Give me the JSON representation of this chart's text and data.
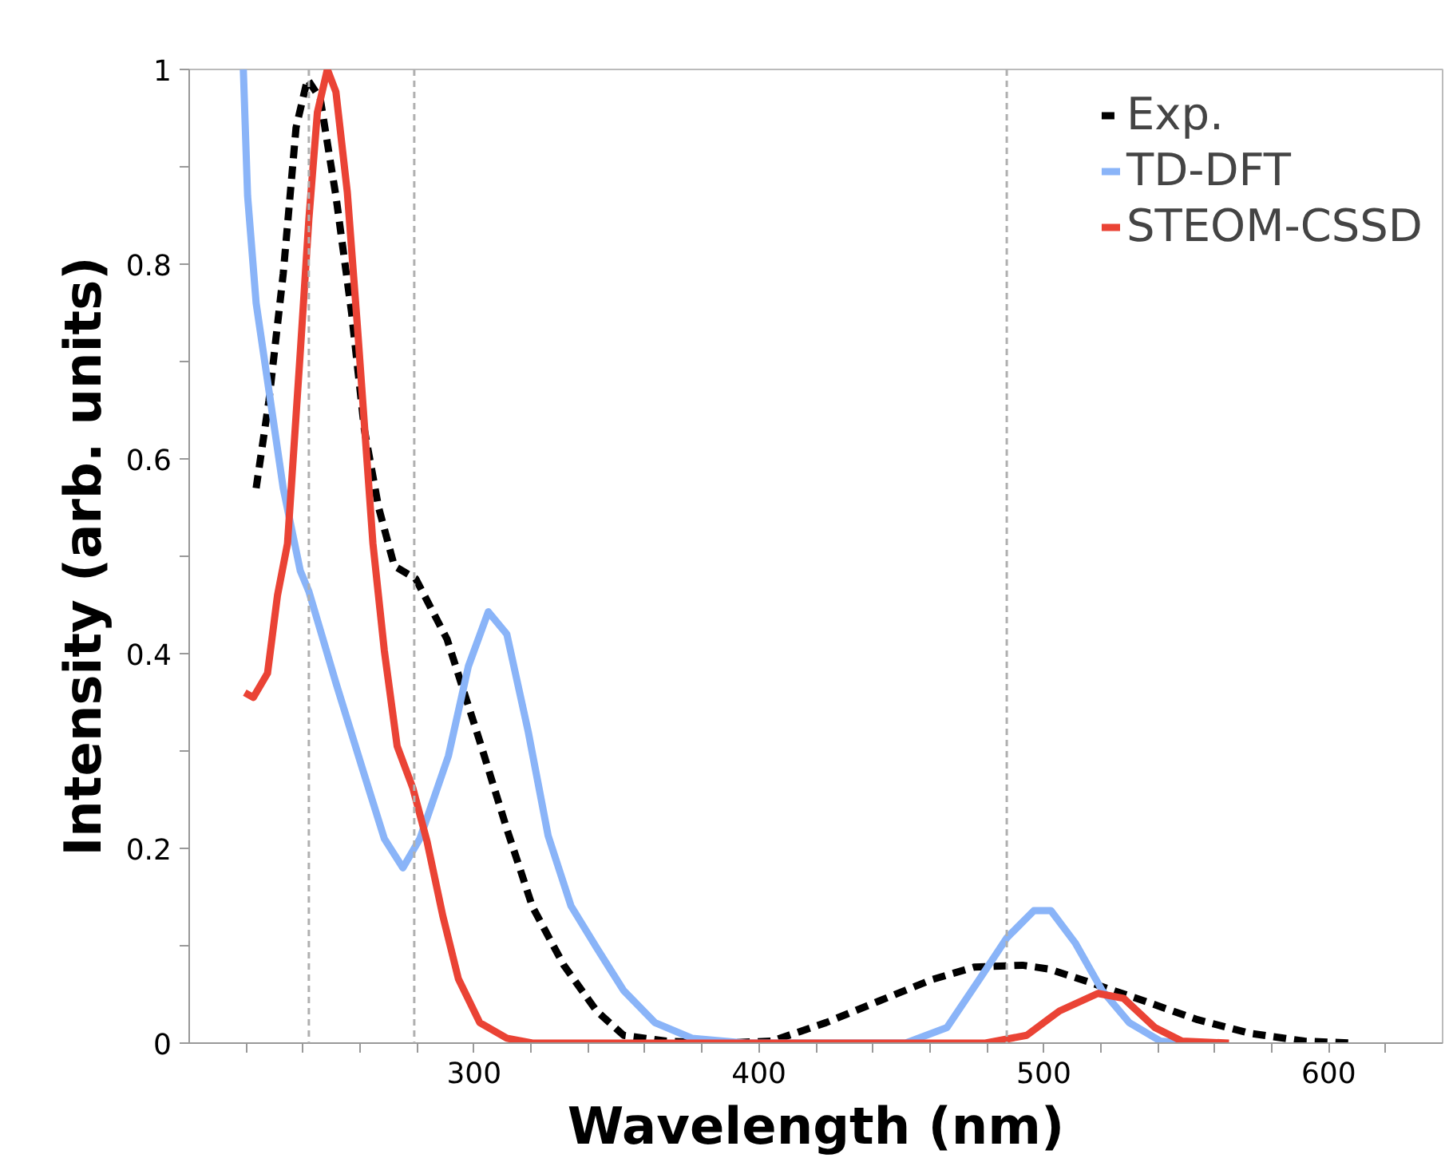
{
  "chart_data": {
    "type": "line",
    "xlabel": "Wavelength (nm)",
    "ylabel": "Intensity (arb. units)",
    "xlim": [
      200,
      640
    ],
    "ylim": [
      0,
      1
    ],
    "xticks": [
      {
        "value": 220,
        "label": null
      },
      {
        "value": 240,
        "label": null
      },
      {
        "value": 260,
        "label": null
      },
      {
        "value": 280,
        "label": null
      },
      300,
      {
        "value": 320,
        "label": null
      },
      {
        "value": 340,
        "label": null
      },
      {
        "value": 360,
        "label": null
      },
      {
        "value": 380,
        "label": null
      },
      400,
      {
        "value": 420,
        "label": null
      },
      {
        "value": 440,
        "label": null
      },
      {
        "value": 460,
        "label": null
      },
      {
        "value": 480,
        "label": null
      },
      500,
      {
        "value": 520,
        "label": null
      },
      {
        "value": 540,
        "label": null
      },
      {
        "value": 560,
        "label": null
      },
      {
        "value": 580,
        "label": null
      },
      600,
      {
        "value": 620,
        "label": null
      }
    ],
    "yticks": [
      0,
      {
        "value": 0.1,
        "label": null
      },
      0.2,
      {
        "value": 0.3,
        "label": null
      },
      0.4,
      {
        "value": 0.5,
        "label": null
      },
      0.6,
      {
        "value": 0.7,
        "label": null
      },
      0.8,
      {
        "value": 0.9,
        "label": null
      },
      1
    ],
    "grid": false,
    "legend": "top right",
    "ref_lines": [
      {
        "axis": "x",
        "value": 242,
        "color": "#b0b0b0",
        "line_style": "dashed"
      },
      {
        "axis": "x",
        "value": 279,
        "color": "#b0b0b0",
        "line_style": "dashed"
      },
      {
        "axis": "x",
        "value": 487,
        "color": "#b0b0b0",
        "line_style": "dashed"
      }
    ],
    "series": [
      {
        "name": "Exp.",
        "color": "#000000",
        "line_style": "dashed",
        "x": [
          223.5,
          228,
          233,
          237.5,
          241.5,
          246,
          251.5,
          257,
          261.5,
          266.5,
          272,
          279.5,
          290.5,
          302,
          311.5,
          320.5,
          331.5,
          343,
          352.5,
          367.5,
          386,
          404.5,
          423.5,
          442,
          460.5,
          475.5,
          492.5,
          502,
          516.5,
          535.5,
          554,
          572.5,
          591.5,
          608.5
        ],
        "values": [
          0.57,
          0.66,
          0.79,
          0.94,
          0.99,
          0.97,
          0.87,
          0.75,
          0.63,
          0.55,
          0.49,
          0.477,
          0.415,
          0.31,
          0.22,
          0.14,
          0.08,
          0.033,
          0.008,
          0.002,
          0,
          0.002,
          0.021,
          0.043,
          0.065,
          0.078,
          0.08,
          0.076,
          0.062,
          0.043,
          0.024,
          0.01,
          0.002,
          0
        ]
      },
      {
        "name": "TD-DFT",
        "color": "#8ab4f8",
        "line_style": "solid",
        "x": [
          219,
          220.5,
          223.5,
          227.5,
          233,
          239,
          242,
          251.5,
          261,
          268.5,
          275,
          281,
          291,
          298,
          305,
          311.5,
          319,
          326,
          334,
          343,
          352.5,
          363.5,
          376.5,
          395.5,
          451.5,
          466,
          477.5,
          487,
          496.5,
          502.5,
          511,
          520.5,
          530,
          541,
          548.5
        ],
        "values": [
          1.0,
          0.87,
          0.76,
          0.68,
          0.57,
          0.485,
          0.464,
          0.37,
          0.28,
          0.21,
          0.18,
          0.21,
          0.295,
          0.387,
          0.443,
          0.42,
          0.32,
          0.213,
          0.141,
          0.098,
          0.054,
          0.021,
          0.005,
          0,
          0,
          0.016,
          0.066,
          0.108,
          0.136,
          0.136,
          0.103,
          0.054,
          0.021,
          0.002,
          0
        ]
      },
      {
        "name": "STEOM-CSSD",
        "color": "#ea4335",
        "line_style": "solid",
        "x": [
          219.5,
          222.5,
          227.5,
          231,
          234.5,
          236.5,
          239,
          242,
          245,
          248.5,
          251.5,
          255.5,
          259,
          263,
          264.5,
          268.5,
          273,
          278.5,
          283.5,
          289,
          294.5,
          302,
          311.5,
          320.5,
          479.5,
          494,
          505.5,
          519,
          528,
          539,
          548.5,
          565
        ],
        "values": [
          0.36,
          0.355,
          0.38,
          0.46,
          0.513,
          0.6,
          0.71,
          0.846,
          0.956,
          1.0,
          0.977,
          0.874,
          0.738,
          0.574,
          0.513,
          0.403,
          0.305,
          0.262,
          0.207,
          0.131,
          0.066,
          0.021,
          0.005,
          0,
          0,
          0.008,
          0.033,
          0.051,
          0.046,
          0.016,
          0.002,
          0
        ]
      }
    ]
  }
}
